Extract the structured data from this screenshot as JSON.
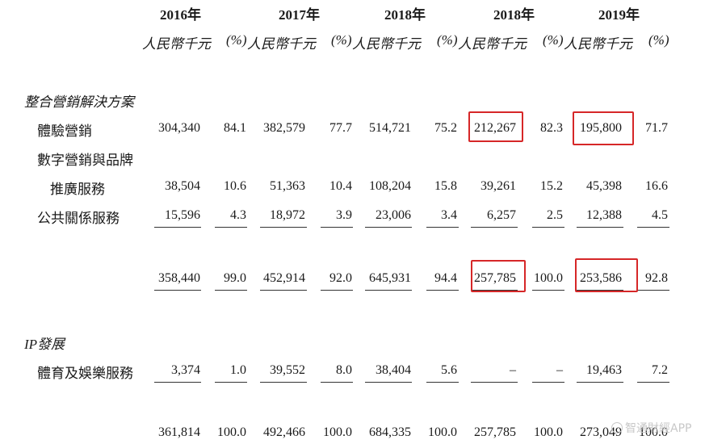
{
  "years": [
    "2016年",
    "2017年",
    "2018年",
    "2018年",
    "2019年"
  ],
  "unit_amount": "人民幣千元",
  "unit_pct": "(%)",
  "sections": {
    "integrated_marketing": "整合營銷解決方案",
    "ip_development": "IP發展"
  },
  "rows": {
    "experience_marketing": {
      "label": "體驗營銷",
      "values": [
        "304,340",
        "84.1",
        "382,579",
        "77.7",
        "514,721",
        "75.2",
        "212,267",
        "82.3",
        "195,800",
        "71.7"
      ]
    },
    "digital_marketing": {
      "label_line1": "數字營銷與品牌",
      "label_line2": "推廣服務",
      "values": [
        "38,504",
        "10.6",
        "51,363",
        "10.4",
        "108,204",
        "15.8",
        "39,261",
        "15.2",
        "45,398",
        "16.6"
      ]
    },
    "public_relations": {
      "label": "公共關係服務",
      "values": [
        "15,596",
        "4.3",
        "18,972",
        "3.9",
        "23,006",
        "3.4",
        "6,257",
        "2.5",
        "12,388",
        "4.5"
      ]
    },
    "subtotal": {
      "values": [
        "358,440",
        "99.0",
        "452,914",
        "92.0",
        "645,931",
        "94.4",
        "257,785",
        "100.0",
        "253,586",
        "92.8"
      ]
    },
    "sports_entertainment": {
      "label": "體育及娛樂服務",
      "values": [
        "3,374",
        "1.0",
        "39,552",
        "8.0",
        "38,404",
        "5.6",
        "–",
        "–",
        "19,463",
        "7.2"
      ]
    },
    "total": {
      "values": [
        "361,814",
        "100.0",
        "492,466",
        "100.0",
        "684,335",
        "100.0",
        "257,785",
        "100.0",
        "273,049",
        "100.0"
      ]
    }
  },
  "highlight_color": "#d62728",
  "watermark": {
    "icon": "watermark-logo-icon",
    "text": "智通財經APP"
  }
}
